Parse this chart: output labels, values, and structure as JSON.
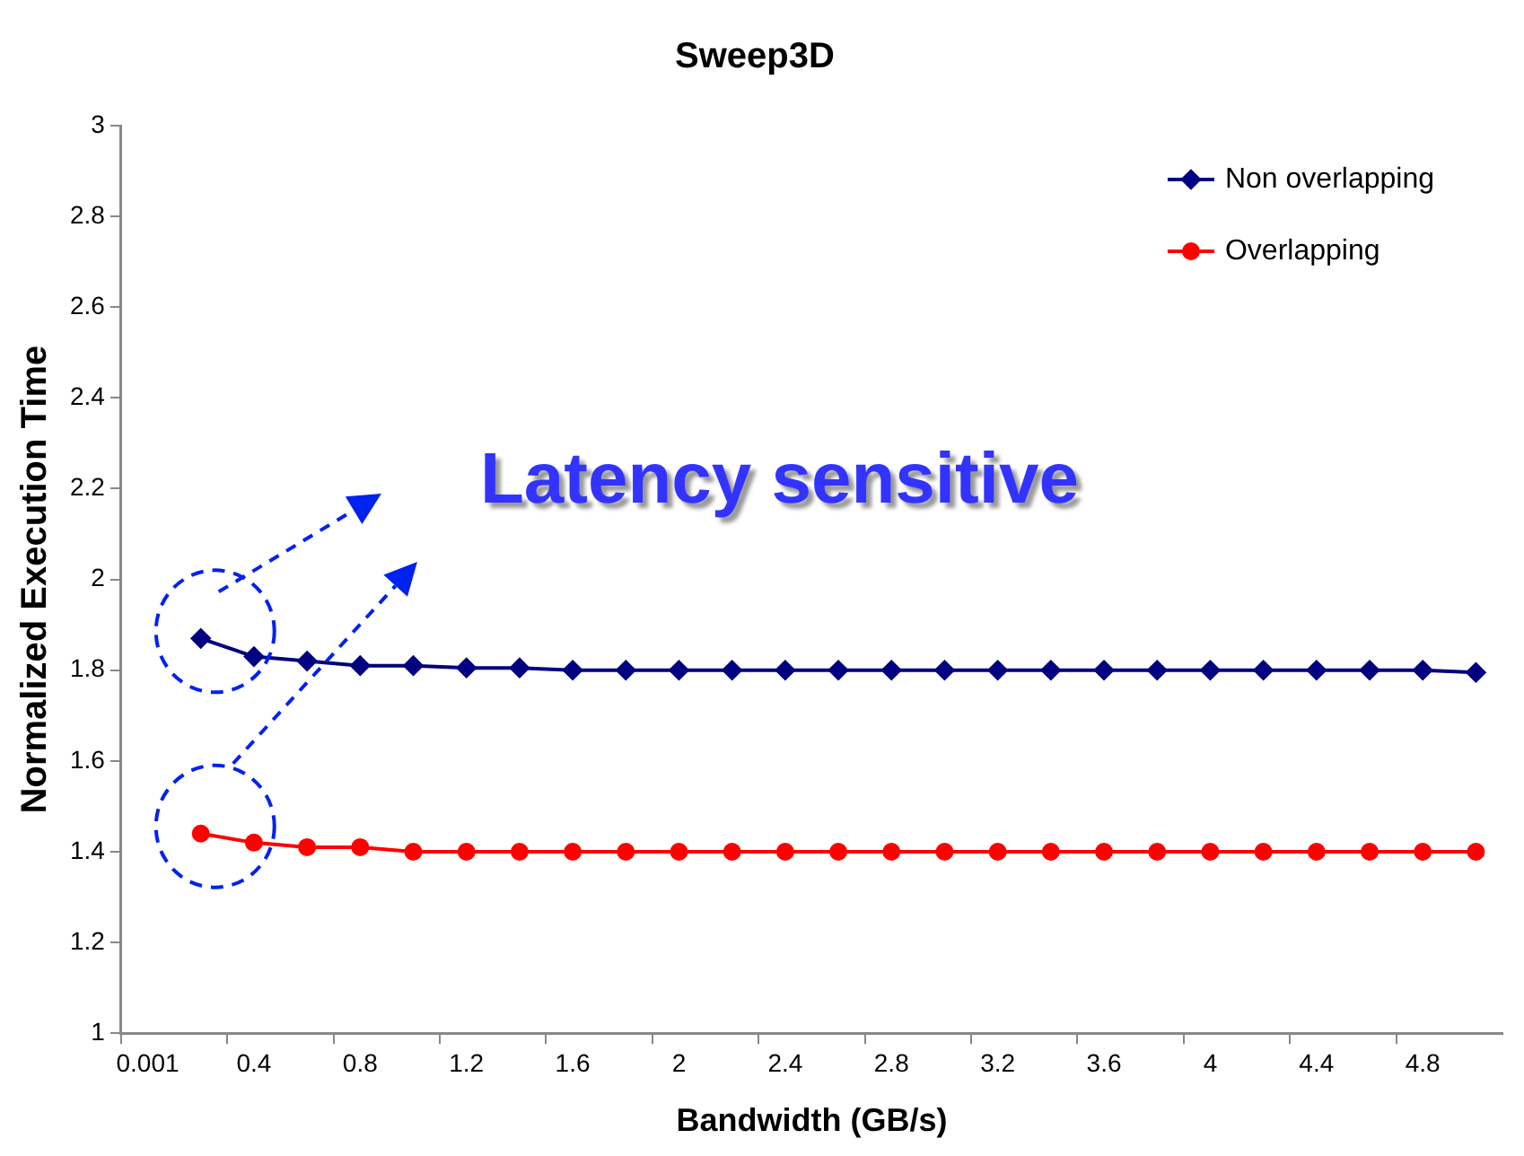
{
  "chart_data": {
    "type": "line",
    "title": "Sweep3D",
    "xlabel": "Bandwidth (GB/s)",
    "ylabel": "Normalized Execution Time",
    "categories": [
      "0.001",
      null,
      "0.4",
      null,
      "0.8",
      null,
      "1.2",
      null,
      "1.6",
      null,
      "2",
      null,
      "2.4",
      null,
      "2.8",
      null,
      "3.2",
      null,
      "3.6",
      null,
      "4",
      null,
      "4.4",
      null,
      "4.8",
      null
    ],
    "series": [
      {
        "name": "Non overlapping",
        "color": "#000080",
        "marker": "diamond",
        "values": [
          null,
          1.87,
          1.83,
          1.82,
          1.81,
          1.81,
          1.805,
          1.805,
          1.8,
          1.8,
          1.8,
          1.8,
          1.8,
          1.8,
          1.8,
          1.8,
          1.8,
          1.8,
          1.8,
          1.8,
          1.8,
          1.8,
          1.8,
          1.8,
          1.8,
          1.795
        ]
      },
      {
        "name": "Overlapping",
        "color": "#ff0000",
        "marker": "circle",
        "values": [
          null,
          1.44,
          1.42,
          1.41,
          1.41,
          1.4,
          1.4,
          1.4,
          1.4,
          1.4,
          1.4,
          1.4,
          1.4,
          1.4,
          1.4,
          1.4,
          1.4,
          1.4,
          1.4,
          1.4,
          1.4,
          1.4,
          1.4,
          1.4,
          1.4,
          1.4
        ]
      }
    ],
    "ylim": [
      1,
      3
    ],
    "yticks": [
      1,
      1.2,
      1.4,
      1.6,
      1.8,
      2,
      2.2,
      2.4,
      2.6,
      2.8,
      3
    ],
    "grid": false,
    "legend": "top right",
    "line_style": "solid",
    "annotations": [
      "Latency sensitive"
    ]
  }
}
